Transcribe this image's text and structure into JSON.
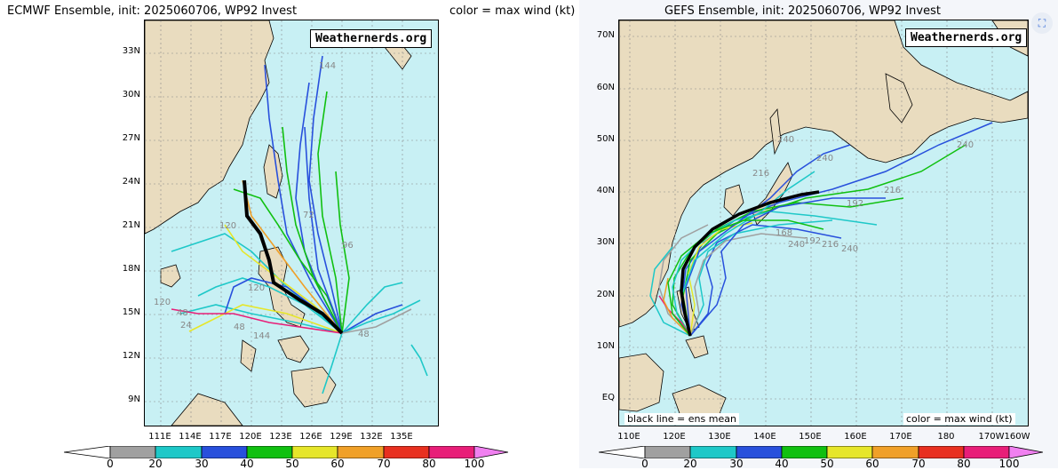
{
  "left": {
    "title": "ECMWF Ensemble, init: 2025060706, WP92 Invest",
    "color_note": "color = max wind (kt)",
    "watermark": "Weathernerds.org",
    "lat_labels": [
      "33N",
      "30N",
      "27N",
      "24N",
      "21N",
      "18N",
      "15N",
      "12N",
      "9N"
    ],
    "lon_labels": [
      "111E",
      "114E",
      "117E",
      "120E",
      "123E",
      "126E",
      "129E",
      "132E",
      "135E"
    ],
    "hour_labels": [
      "144",
      "96",
      "120",
      "48",
      "24",
      "48",
      "48",
      "144",
      "120",
      "120",
      "72"
    ]
  },
  "right": {
    "title": "GEFS Ensemble, init: 2025060706, WP92 Invest",
    "watermark": "Weathernerds.org",
    "mean_note": "black line = ens mean",
    "color_note": "color = max wind (kt)",
    "lat_labels": [
      "70N",
      "60N",
      "50N",
      "40N",
      "30N",
      "20N",
      "10N",
      "EQ"
    ],
    "lon_labels": [
      "110E",
      "120E",
      "130E",
      "140E",
      "150E",
      "160E",
      "170E",
      "180",
      "170W",
      "160W"
    ],
    "hour_labels": [
      "240",
      "240",
      "216",
      "216",
      "192",
      "168",
      "240",
      "192",
      "216",
      "240",
      "240"
    ]
  },
  "colorbar": {
    "ticks": [
      "0",
      "20",
      "30",
      "40",
      "50",
      "60",
      "70",
      "80",
      "100"
    ],
    "colors": [
      "#ffffff",
      "#a0a0a0",
      "#1ec8c8",
      "#2850dc",
      "#10c010",
      "#e6e62a",
      "#f0a028",
      "#e83020",
      "#e81e78",
      "#f080f0"
    ]
  },
  "icons": {
    "corner": "expand-icon"
  }
}
